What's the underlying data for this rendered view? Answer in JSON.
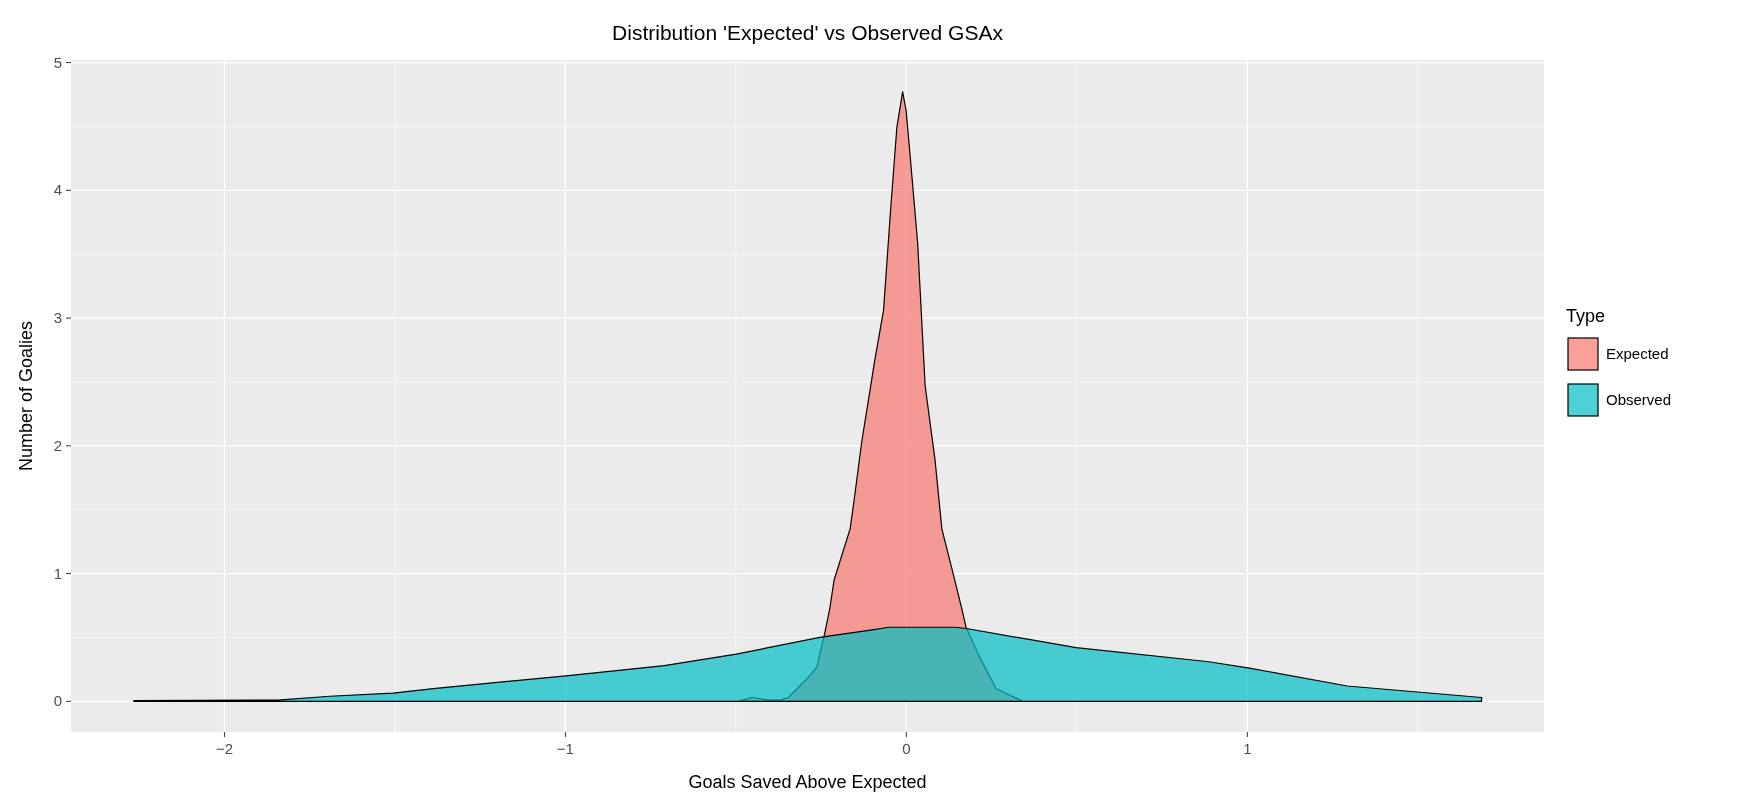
{
  "chart_data": {
    "type": "area",
    "title": "Distribution 'Expected' vs Observed GSAx",
    "xlabel": "Goals Saved Above Expected",
    "ylabel": "Number of Goalies",
    "legend_title": "Type",
    "legend": "right",
    "grid": true,
    "xlim": [
      -2.45,
      1.87
    ],
    "xticks": [
      -2,
      -1,
      0,
      1
    ],
    "ylim": [
      -0.24,
      5.02
    ],
    "yticks": [
      0,
      1,
      2,
      3,
      4,
      5
    ],
    "series": [
      {
        "name": "Expected",
        "color": "#f8766d",
        "x": [
          -0.493,
          -0.454,
          -0.404,
          -0.37,
          -0.346,
          -0.316,
          -0.287,
          -0.262,
          -0.247,
          -0.242,
          -0.225,
          -0.212,
          -0.165,
          -0.153,
          -0.131,
          -0.107,
          -0.094,
          -0.067,
          -0.047,
          -0.028,
          -0.011,
          -0.001,
          0.011,
          0.033,
          0.055,
          0.084,
          0.104,
          0.138,
          0.163,
          0.176,
          0.18,
          0.214,
          0.263,
          0.302,
          0.342
        ],
        "values": [
          0,
          0.03,
          0.01,
          0.01,
          0.03,
          0.11,
          0.19,
          0.27,
          0.45,
          0.5,
          0.72,
          0.95,
          1.35,
          1.58,
          2.03,
          2.43,
          2.65,
          3.06,
          3.82,
          4.49,
          4.77,
          4.63,
          4.27,
          3.59,
          2.47,
          1.89,
          1.35,
          0.99,
          0.72,
          0.57,
          0.55,
          0.35,
          0.1,
          0.05,
          0
        ]
      },
      {
        "name": "Observed",
        "color": "#00bfc4",
        "x": [
          -2.266,
          -1.844,
          -1.691,
          -1.505,
          -1.387,
          -0.998,
          -0.71,
          -0.499,
          -0.254,
          -0.1,
          -0.051,
          0.0,
          0.1,
          0.143,
          0.176,
          0.498,
          0.887,
          1.006,
          1.293,
          1.687
        ],
        "values": [
          0.005,
          0.01,
          0.04,
          0.065,
          0.1,
          0.2,
          0.28,
          0.37,
          0.5,
          0.56,
          0.58,
          0.58,
          0.58,
          0.58,
          0.57,
          0.42,
          0.31,
          0.26,
          0.12,
          0.03
        ]
      }
    ]
  }
}
